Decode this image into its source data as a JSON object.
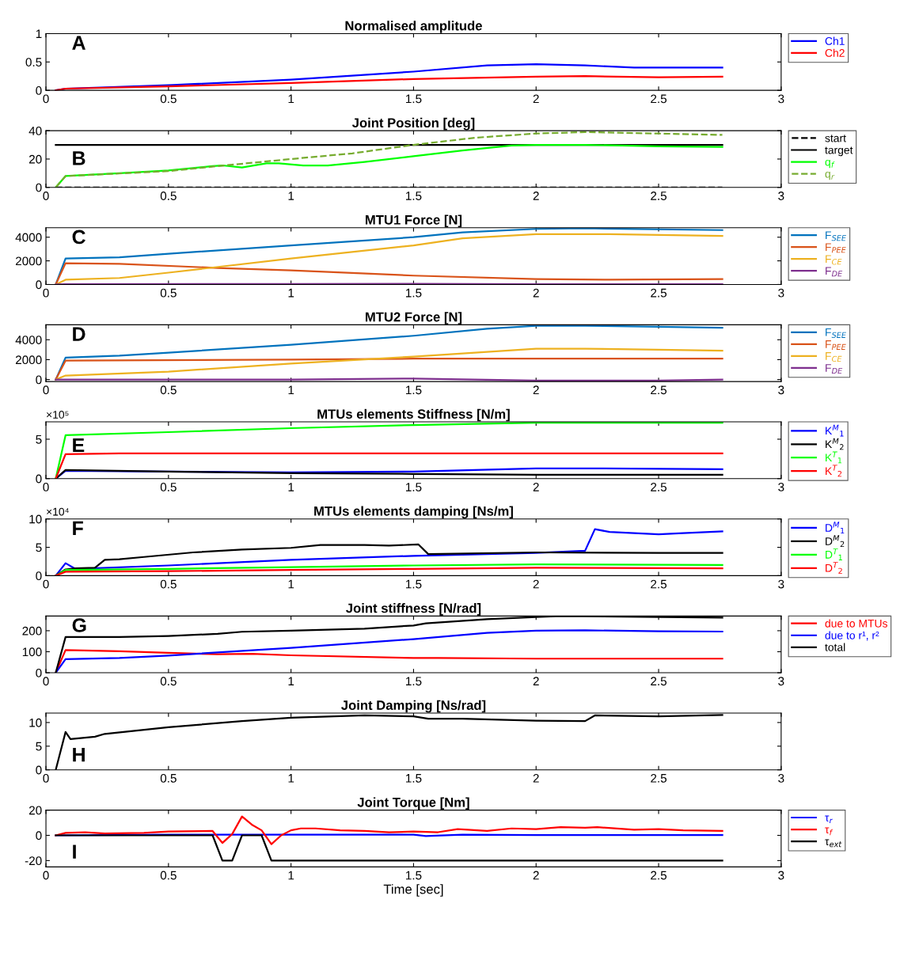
{
  "chart_data": [
    {
      "type": "line",
      "title": "Normalised amplitude",
      "annotations": [
        "A"
      ],
      "xlim": [
        0,
        3
      ],
      "xticks": [
        0,
        0.5,
        1,
        1.5,
        2,
        2.5,
        3
      ],
      "ylim": [
        0,
        1
      ],
      "yticks": [
        0,
        0.5,
        1
      ],
      "grid": false,
      "legend": "right",
      "series": [
        {
          "name": "Ch1",
          "color": "#0000ff",
          "x": [
            0.04,
            0.08,
            0.5,
            1,
            1.5,
            1.8,
            2,
            2.2,
            2.4,
            2.76
          ],
          "values": [
            0,
            0.03,
            0.09,
            0.19,
            0.33,
            0.44,
            0.46,
            0.44,
            0.4,
            0.4
          ]
        },
        {
          "name": "Ch2",
          "color": "#ff0000",
          "x": [
            0.04,
            0.08,
            0.5,
            1,
            1.5,
            2,
            2.2,
            2.5,
            2.76
          ],
          "values": [
            0,
            0.03,
            0.07,
            0.13,
            0.2,
            0.24,
            0.25,
            0.23,
            0.24
          ]
        }
      ]
    },
    {
      "type": "line",
      "title": "Joint Position [deg]",
      "annotations": [
        "B"
      ],
      "xlim": [
        0,
        3
      ],
      "xticks": [
        0,
        0.5,
        1,
        1.5,
        2,
        2.5,
        3
      ],
      "ylim": [
        0,
        40
      ],
      "yticks": [
        0,
        20,
        40
      ],
      "grid": false,
      "legend": "right",
      "series": [
        {
          "name": "start",
          "color": "#000000",
          "line_style": "dashed",
          "x": [
            0.04,
            2.76
          ],
          "values": [
            0,
            0
          ]
        },
        {
          "name": "target",
          "color": "#000000",
          "x": [
            0.04,
            2.76
          ],
          "values": [
            30,
            30
          ]
        },
        {
          "name": "q$_{f}$",
          "color": "#00ff00",
          "x": [
            0.04,
            0.08,
            0.3,
            0.5,
            0.68,
            0.72,
            0.8,
            0.9,
            0.95,
            1.05,
            1.15,
            1.3,
            1.5,
            1.7,
            1.9,
            2.0,
            2.2,
            2.5,
            2.76
          ],
          "values": [
            0,
            8,
            10,
            12,
            15,
            15.5,
            14,
            17,
            17,
            15.5,
            15.5,
            18,
            22,
            26,
            29.5,
            30,
            30,
            29,
            28.5
          ]
        },
        {
          "name": "q$_{r}$",
          "color": "#77ac30",
          "line_style": "dashed",
          "x": [
            0.04,
            0.08,
            0.5,
            0.7,
            1.0,
            1.25,
            1.5,
            1.75,
            2.0,
            2.2,
            2.5,
            2.76
          ],
          "values": [
            0,
            8,
            11.5,
            15,
            20,
            24,
            30,
            35,
            38,
            39,
            38,
            37
          ]
        }
      ]
    },
    {
      "type": "line",
      "title": "MTU1 Force [N]",
      "annotations": [
        "C"
      ],
      "xlim": [
        0,
        3
      ],
      "xticks": [
        0,
        0.5,
        1,
        1.5,
        2,
        2.5,
        3
      ],
      "ylim": [
        0,
        4800
      ],
      "yticks": [
        0,
        2000,
        4000
      ],
      "grid": false,
      "legend": "right",
      "series": [
        {
          "name": "F$_{SEE}$",
          "color": "#0072bd",
          "x": [
            0.04,
            0.08,
            0.3,
            0.5,
            1,
            1.5,
            1.7,
            2,
            2.2,
            2.76
          ],
          "values": [
            0,
            2200,
            2300,
            2600,
            3300,
            4000,
            4400,
            4700,
            4750,
            4600
          ]
        },
        {
          "name": "F$_{PEE}$",
          "color": "#d95319",
          "x": [
            0.04,
            0.08,
            0.3,
            0.7,
            1,
            1.5,
            2,
            2.3,
            2.76
          ],
          "values": [
            0,
            1800,
            1750,
            1400,
            1200,
            750,
            450,
            400,
            450
          ]
        },
        {
          "name": "F$_{CE}$",
          "color": "#edb120",
          "x": [
            0.04,
            0.08,
            0.3,
            0.5,
            1,
            1.5,
            1.7,
            2,
            2.3,
            2.76
          ],
          "values": [
            0,
            400,
            550,
            1000,
            2200,
            3300,
            3900,
            4250,
            4250,
            4100
          ]
        },
        {
          "name": "F$_{DE}$",
          "color": "#7e2f8e",
          "x": [
            0.04,
            0.08,
            1,
            1.5,
            2,
            2.76
          ],
          "values": [
            0,
            30,
            40,
            60,
            20,
            20
          ]
        }
      ]
    },
    {
      "type": "line",
      "title": "MTU2 Force [N]",
      "annotations": [
        "D"
      ],
      "xlim": [
        0,
        3
      ],
      "xticks": [
        0,
        0.5,
        1,
        1.5,
        2,
        2.5,
        3
      ],
      "ylim": [
        -200,
        5500
      ],
      "yticks": [
        0,
        2000,
        4000
      ],
      "grid": false,
      "legend": "right",
      "series": [
        {
          "name": "F$_{SEE}$",
          "color": "#0072bd",
          "x": [
            0.04,
            0.08,
            0.3,
            0.5,
            1,
            1.5,
            1.8,
            2,
            2.2,
            2.5,
            2.76
          ],
          "values": [
            0,
            2200,
            2400,
            2700,
            3500,
            4400,
            5100,
            5400,
            5400,
            5300,
            5200
          ]
        },
        {
          "name": "F$_{PEE}$",
          "color": "#d95319",
          "x": [
            0.04,
            0.08,
            1,
            1.5,
            2,
            2.76
          ],
          "values": [
            0,
            1900,
            2000,
            2100,
            2100,
            2100
          ]
        },
        {
          "name": "F$_{CE}$",
          "color": "#edb120",
          "x": [
            0.04,
            0.08,
            0.5,
            1,
            1.5,
            2,
            2.2,
            2.5,
            2.76
          ],
          "values": [
            0,
            400,
            800,
            1600,
            2300,
            3100,
            3100,
            3000,
            2900
          ]
        },
        {
          "name": "F$_{DE}$",
          "color": "#7e2f8e",
          "x": [
            0.04,
            0.08,
            1,
            1.5,
            2,
            2.5,
            2.76
          ],
          "values": [
            0,
            0,
            0,
            100,
            -100,
            -100,
            0
          ]
        }
      ]
    },
    {
      "type": "line",
      "title": "MTUs elements Stiffness [N/m]",
      "annotations": [
        "E",
        "×10⁵"
      ],
      "xlim": [
        0,
        3
      ],
      "xticks": [
        0,
        0.5,
        1,
        1.5,
        2,
        2.5,
        3
      ],
      "ylim": [
        0,
        7.2
      ],
      "yticks": [
        0,
        5
      ],
      "grid": false,
      "legend": "right",
      "series": [
        {
          "name": "K$^{M}$$_{1}$",
          "color": "#0000ff",
          "x": [
            0.04,
            0.08,
            0.5,
            1,
            1.5,
            2,
            2.2,
            2.76
          ],
          "values": [
            0,
            1.0,
            0.9,
            0.8,
            0.9,
            1.3,
            1.3,
            1.2
          ]
        },
        {
          "name": "K$^{M}$$_{2}$",
          "color": "#000000",
          "x": [
            0.04,
            0.08,
            0.5,
            1,
            1.5,
            2,
            2.76
          ],
          "values": [
            0,
            1.1,
            0.9,
            0.7,
            0.6,
            0.5,
            0.5
          ]
        },
        {
          "name": "K$^{T}$$_{1}$",
          "color": "#00ff00",
          "x": [
            0.04,
            0.08,
            0.5,
            1,
            1.5,
            2,
            2.2,
            2.76
          ],
          "values": [
            0,
            5.5,
            5.9,
            6.4,
            6.8,
            7.1,
            7.1,
            7.1
          ]
        },
        {
          "name": "K$^{T}$$_{2}$",
          "color": "#ff0000",
          "x": [
            0.04,
            0.08,
            0.3,
            2.76
          ],
          "values": [
            0,
            3.1,
            3.2,
            3.2
          ]
        }
      ]
    },
    {
      "type": "line",
      "title": "MTUs elements damping [Ns/m]",
      "annotations": [
        "F",
        "×10⁴"
      ],
      "xlim": [
        0,
        3
      ],
      "xticks": [
        0,
        0.5,
        1,
        1.5,
        2,
        2.5,
        3
      ],
      "ylim": [
        0,
        10
      ],
      "yticks": [
        0,
        5,
        10
      ],
      "grid": false,
      "legend": "right",
      "series": [
        {
          "name": "D$^{M}$$_{1}$",
          "color": "#0000ff",
          "x": [
            0.04,
            0.08,
            0.12,
            0.5,
            1,
            1.5,
            2,
            2.2,
            2.24,
            2.3,
            2.5,
            2.6,
            2.76
          ],
          "values": [
            0,
            2.2,
            1.2,
            1.8,
            2.8,
            3.5,
            4.0,
            4.4,
            8.2,
            7.7,
            7.3,
            7.5,
            7.8
          ]
        },
        {
          "name": "D$^{M}$$_{2}$",
          "color": "#000000",
          "x": [
            0.04,
            0.08,
            0.12,
            0.2,
            0.24,
            0.3,
            0.4,
            0.6,
            0.8,
            1,
            1.12,
            1.3,
            1.4,
            1.52,
            1.56,
            2,
            2.5,
            2.76
          ],
          "values": [
            0,
            1.1,
            1.3,
            1.4,
            2.8,
            2.9,
            3.3,
            4.1,
            4.6,
            4.9,
            5.4,
            5.4,
            5.3,
            5.5,
            3.8,
            4.1,
            4.0,
            4.0
          ]
        },
        {
          "name": "D$^{T}$$_{1}$",
          "color": "#00ff00",
          "x": [
            0.04,
            0.08,
            0.5,
            1,
            1.5,
            2,
            2.76
          ],
          "values": [
            0,
            1.0,
            1.2,
            1.5,
            1.8,
            2.0,
            1.9
          ]
        },
        {
          "name": "D$^{T}$$_{2}$",
          "color": "#ff0000",
          "x": [
            0.04,
            0.08,
            0.5,
            1,
            1.5,
            2,
            2.76
          ],
          "values": [
            0,
            0.7,
            0.8,
            1.0,
            1.2,
            1.4,
            1.3
          ]
        }
      ]
    },
    {
      "type": "line",
      "title": "Joint stiffness [N/rad]",
      "annotations": [
        "G"
      ],
      "xlim": [
        0,
        3
      ],
      "xticks": [
        0,
        0.5,
        1,
        1.5,
        2,
        2.5,
        3
      ],
      "ylim": [
        0,
        270
      ],
      "yticks": [
        0,
        100,
        200
      ],
      "grid": false,
      "legend": "right",
      "series": [
        {
          "name": "due to MTUs",
          "color": "#ff0000",
          "x": [
            0.04,
            0.08,
            0.3,
            0.5,
            0.7,
            0.84,
            1,
            1.5,
            1.6,
            2,
            2.5,
            2.76
          ],
          "values": [
            0,
            108,
            102,
            95,
            88,
            90,
            83,
            70,
            70,
            67,
            67,
            67
          ]
        },
        {
          "name": "due to r¹, r²",
          "color": "#0000ff",
          "x": [
            0.04,
            0.08,
            0.3,
            0.5,
            1,
            1.5,
            1.8,
            2,
            2.2,
            2.5,
            2.76
          ],
          "values": [
            0,
            65,
            70,
            82,
            118,
            160,
            190,
            200,
            202,
            197,
            196
          ]
        },
        {
          "name": "total",
          "color": "#000000",
          "x": [
            0.04,
            0.08,
            0.3,
            0.5,
            0.7,
            0.8,
            1,
            1.3,
            1.5,
            1.55,
            1.8,
            2,
            2.1,
            2.5,
            2.76
          ],
          "values": [
            0,
            170,
            170,
            175,
            185,
            195,
            200,
            210,
            225,
            235,
            255,
            265,
            270,
            265,
            262
          ]
        }
      ]
    },
    {
      "type": "line",
      "title": "Joint Damping [Ns/rad]",
      "annotations": [
        "H"
      ],
      "xlim": [
        0,
        3
      ],
      "xticks": [
        0,
        0.5,
        1,
        1.5,
        2,
        2.5,
        3
      ],
      "ylim": [
        0,
        12
      ],
      "yticks": [
        0,
        5,
        10
      ],
      "grid": false,
      "series": [
        {
          "color": "#000000",
          "x": [
            0.04,
            0.08,
            0.1,
            0.2,
            0.24,
            0.5,
            0.8,
            1,
            1.3,
            1.5,
            1.56,
            1.7,
            2,
            2.2,
            2.24,
            2.5,
            2.76
          ],
          "values": [
            0,
            8,
            6.5,
            7,
            7.6,
            9,
            10.3,
            11,
            11.5,
            11.3,
            10.8,
            10.8,
            10.4,
            10.3,
            11.5,
            11.3,
            11.6
          ]
        }
      ]
    },
    {
      "type": "line",
      "title": "Joint Torque [Nm]",
      "xlabel": "Time [sec]",
      "annotations": [
        "I"
      ],
      "xlim": [
        0,
        3
      ],
      "xticks": [
        0,
        0.5,
        1,
        1.5,
        2,
        2.5,
        3
      ],
      "ylim": [
        -25,
        20
      ],
      "yticks": [
        -20,
        0,
        20
      ],
      "grid": false,
      "legend": "right",
      "series": [
        {
          "name": "τ$_{r}$",
          "color": "#0000ff",
          "x": [
            0.04,
            0.5,
            1,
            1.5,
            1.55,
            1.7,
            2,
            2.76
          ],
          "values": [
            0,
            0.5,
            0.5,
            0.5,
            -0.5,
            0.5,
            0.3,
            0.3
          ]
        },
        {
          "name": "τ$_{f}$",
          "color": "#ff0000",
          "x": [
            0.04,
            0.08,
            0.16,
            0.24,
            0.4,
            0.5,
            0.68,
            0.72,
            0.76,
            0.8,
            0.84,
            0.88,
            0.92,
            0.96,
            1,
            1.04,
            1.1,
            1.2,
            1.3,
            1.4,
            1.5,
            1.6,
            1.68,
            1.8,
            1.9,
            2,
            2.1,
            2.2,
            2.25,
            2.4,
            2.5,
            2.6,
            2.76
          ],
          "values": [
            0,
            2,
            2.5,
            1.5,
            2,
            3,
            3.5,
            -6,
            1,
            15,
            8.5,
            4,
            -7,
            0,
            4,
            5.5,
            5.5,
            4,
            3.5,
            2.5,
            3,
            2.5,
            5,
            3.5,
            5.5,
            5,
            6.5,
            6,
            6.5,
            4.5,
            5,
            4,
            3.5
          ]
        },
        {
          "name": "τ$_{ext}$",
          "color": "#000000",
          "x": [
            0.04,
            0.68,
            0.72,
            0.76,
            0.8,
            0.88,
            0.92,
            2.76
          ],
          "values": [
            0,
            0,
            -20,
            -20,
            0,
            0,
            -20,
            -20
          ]
        }
      ]
    }
  ]
}
